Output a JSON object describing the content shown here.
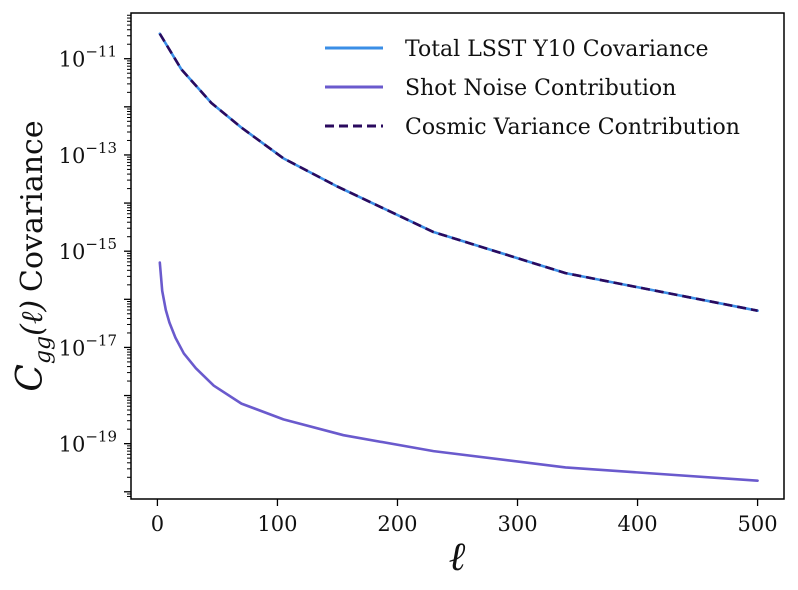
{
  "chart_data": {
    "type": "line",
    "title": "",
    "xlabel": "ℓ",
    "ylabel": "C_gg(ℓ) Covariance",
    "ylabel_parts": {
      "symbol": "C",
      "subscript": "gg",
      "arg": "(ℓ)",
      "text": "Covariance"
    },
    "xscale": "linear",
    "yscale": "log",
    "xlim": [
      -22,
      522
    ],
    "ylim_log10": [
      -20.15,
      -10.05
    ],
    "x_ticks": [
      0,
      100,
      200,
      300,
      400,
      500
    ],
    "x_tick_labels": [
      "0",
      "100",
      "200",
      "300",
      "400",
      "500"
    ],
    "y_ticks_log10": [
      -11,
      -13,
      -15,
      -17,
      -19
    ],
    "y_tick_base": "10",
    "y_tick_exponents": [
      "−11",
      "−13",
      "−15",
      "−17",
      "−19"
    ],
    "legend_position": "top-right",
    "series": [
      {
        "name": "Total LSST Y10 Covariance",
        "color": "#3a8ee6",
        "style": "solid",
        "x": [
          2,
          20,
          45,
          70,
          105,
          150,
          230,
          340,
          500
        ],
        "y": [
          3.3e-11,
          6e-12,
          1.2e-12,
          3.7e-13,
          8.5e-14,
          2.2e-14,
          2.5e-15,
          3.5e-16,
          5.8e-17
        ]
      },
      {
        "name": "Shot Noise Contribution",
        "color": "#6a5acd",
        "style": "solid",
        "x": [
          2,
          4,
          7,
          10,
          15,
          22,
          32,
          47,
          70,
          105,
          155,
          230,
          340,
          500
        ],
        "y": [
          5.8e-16,
          1.5e-16,
          6e-17,
          3.3e-17,
          1.6e-17,
          7.5e-18,
          3.7e-18,
          1.6e-18,
          6.8e-19,
          3.2e-19,
          1.5e-19,
          7e-20,
          3.2e-20,
          1.7e-20
        ]
      },
      {
        "name": "Cosmic Variance Contribution",
        "color": "#2a0a5e",
        "style": "dashed",
        "x": [
          2,
          20,
          45,
          70,
          105,
          150,
          230,
          340,
          500
        ],
        "y": [
          3.3e-11,
          6e-12,
          1.2e-12,
          3.7e-13,
          8.5e-14,
          2.2e-14,
          2.5e-15,
          3.5e-16,
          5.8e-17
        ]
      }
    ]
  }
}
